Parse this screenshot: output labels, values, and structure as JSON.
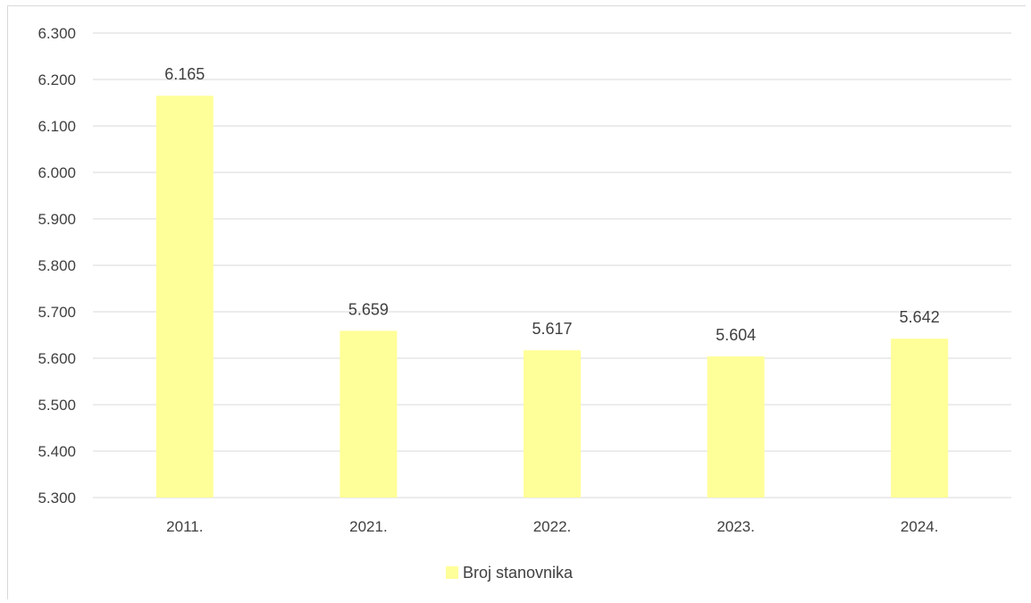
{
  "chart_data": {
    "type": "bar",
    "categories": [
      "2011.",
      "2021.",
      "2022.",
      "2023.",
      "2024."
    ],
    "series": [
      {
        "name": "Broj stanovnika",
        "values": [
          6165,
          5659,
          5617,
          5604,
          5642
        ],
        "value_labels": [
          "6.165",
          "5.659",
          "5.617",
          "5.604",
          "5.642"
        ],
        "color": "#FFFF99"
      }
    ],
    "ylim": [
      5300,
      6300
    ],
    "y_ticks": [
      5300,
      5400,
      5500,
      5600,
      5700,
      5800,
      5900,
      6000,
      6100,
      6200,
      6300
    ],
    "y_tick_labels": [
      "5.300",
      "5.400",
      "5.500",
      "5.600",
      "5.700",
      "5.800",
      "5.900",
      "6.000",
      "6.100",
      "6.200",
      "6.300"
    ],
    "grid": true,
    "legend_position": "bottom",
    "gridline_color": "#d9d9d9"
  }
}
